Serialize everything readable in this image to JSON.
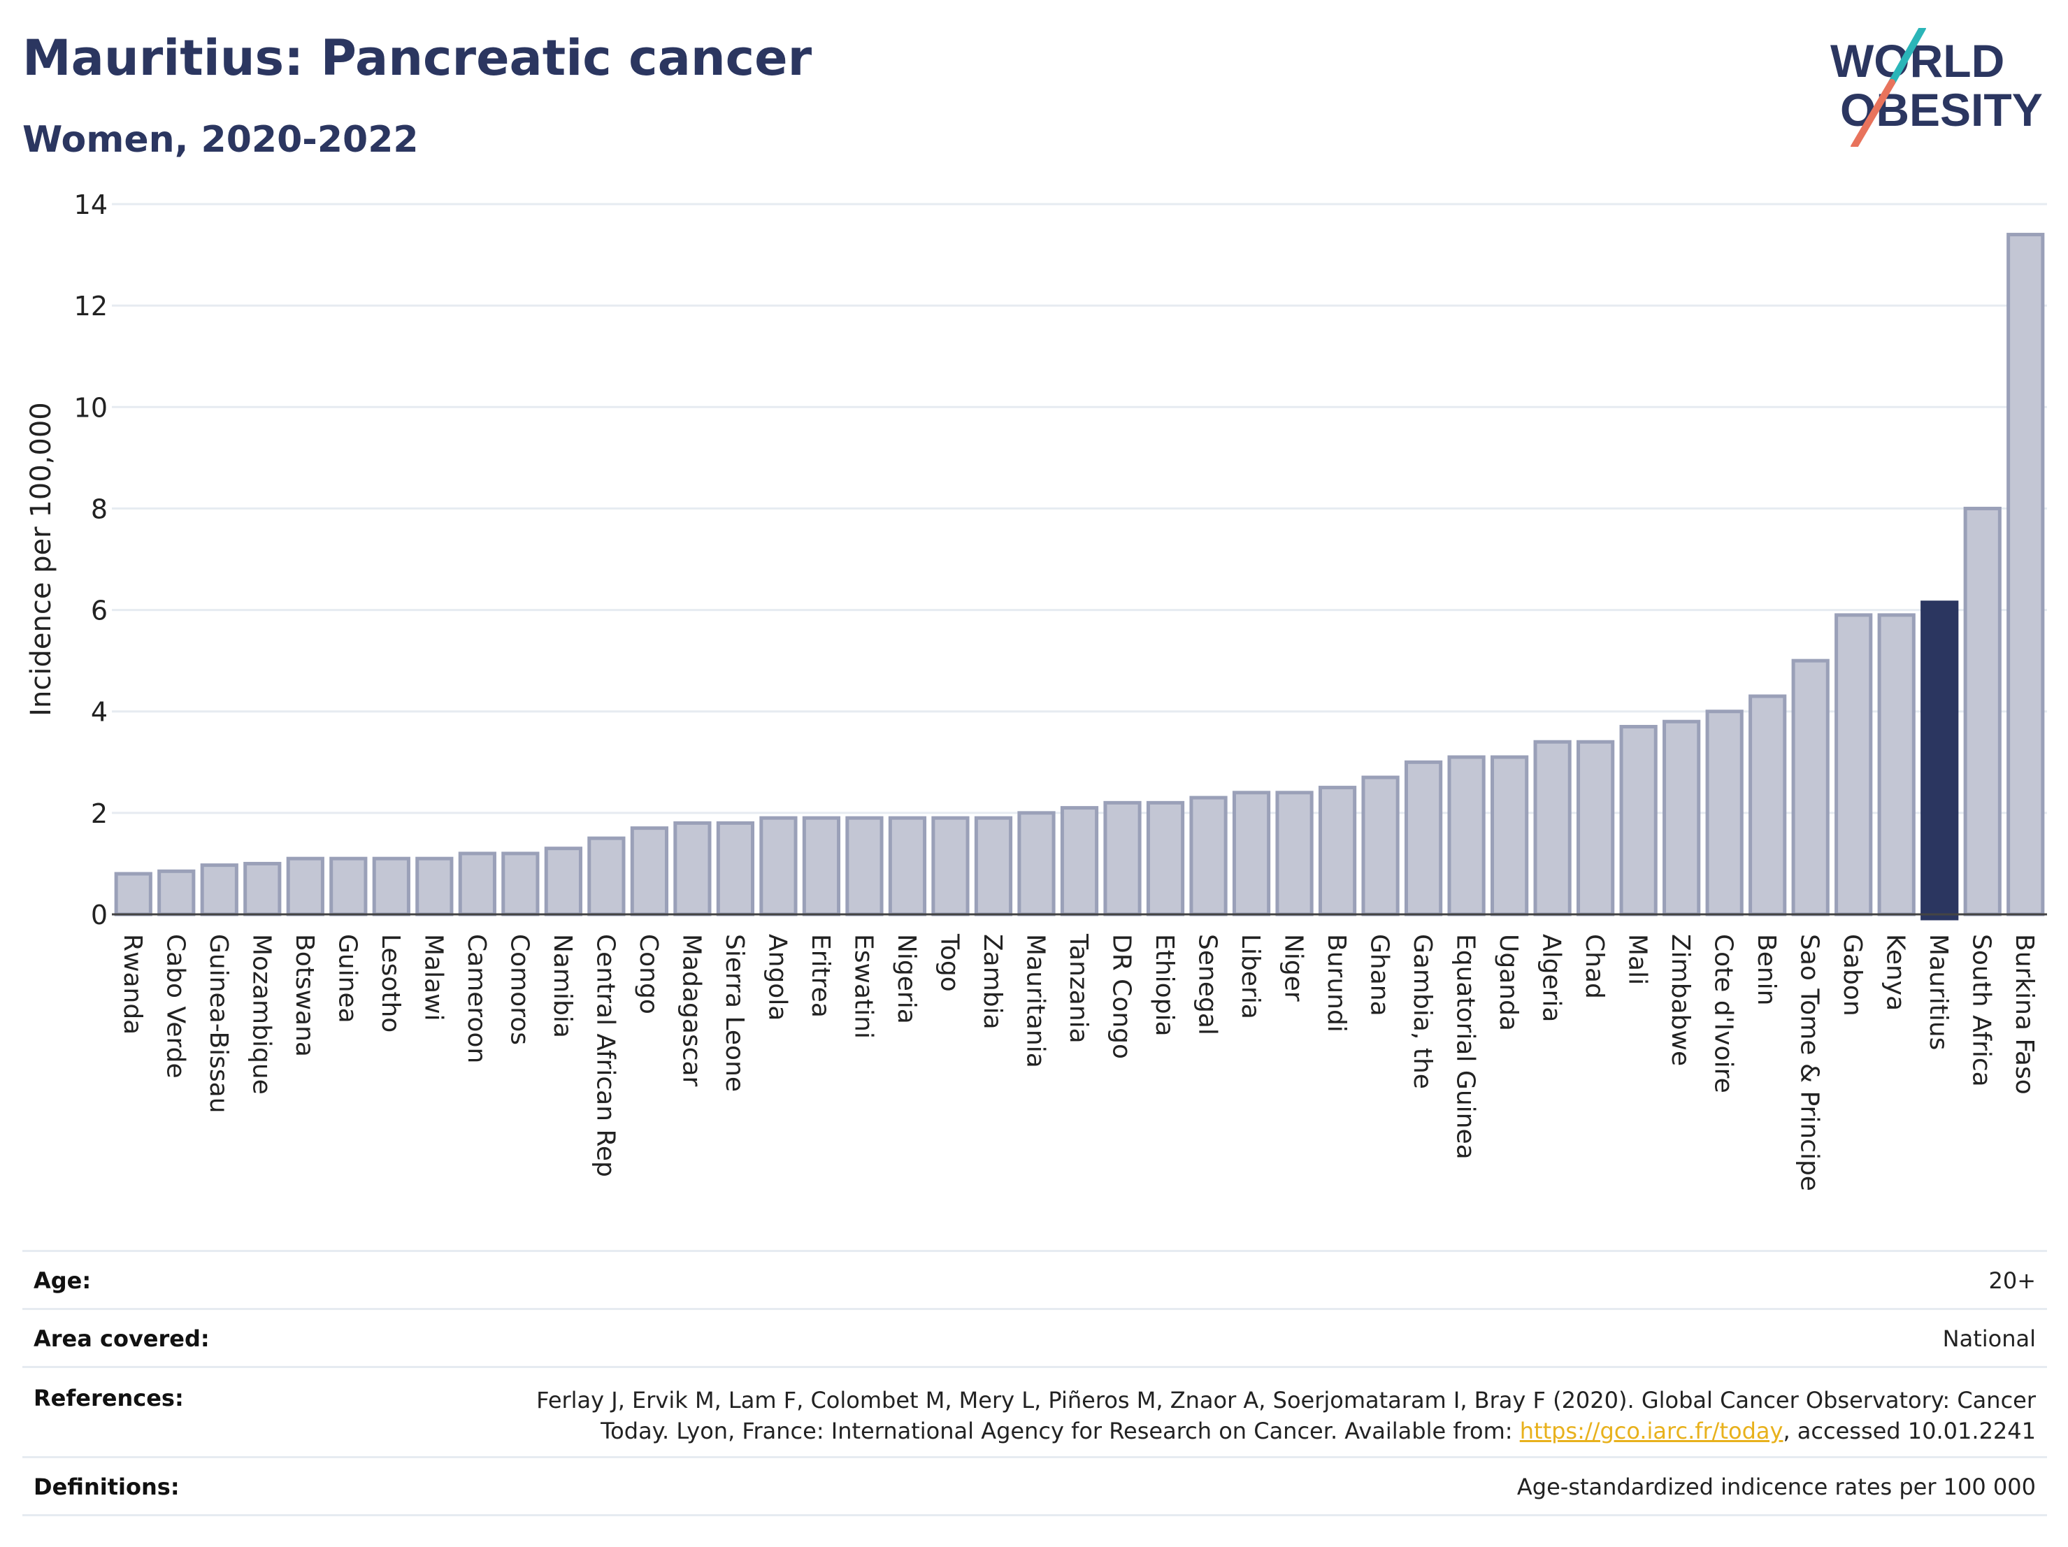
{
  "header": {
    "title": "Mauritius: Pancreatic cancer",
    "subtitle": "Women, 2020-2022"
  },
  "logo": {
    "line1": "WORLD",
    "line2": "OBESITY",
    "colors": {
      "text": "#2b3660",
      "slash_teal": "#2bb5b8",
      "slash_coral": "#e8735c"
    }
  },
  "chart_data": {
    "type": "bar",
    "title": "Mauritius: Pancreatic cancer",
    "subtitle": "Women, 2020-2022",
    "ylabel": "Incidence per 100,000",
    "xlabel": "",
    "ylim": [
      0,
      14
    ],
    "yticks": [
      0,
      2,
      4,
      6,
      8,
      10,
      12,
      14
    ],
    "grid": true,
    "highlight": "Mauritius",
    "colors": {
      "bar": "#c3c6d4",
      "bar_border": "#9aa0b8",
      "highlight": "#2b3660",
      "grid": "#e6ebf1"
    },
    "categories": [
      "Rwanda",
      "Cabo Verde",
      "Guinea-Bissau",
      "Mozambique",
      "Botswana",
      "Guinea",
      "Lesotho",
      "Malawi",
      "Cameroon",
      "Comoros",
      "Namibia",
      "Central African Rep",
      "Congo",
      "Madagascar",
      "Sierra Leone",
      "Angola",
      "Eritrea",
      "Eswatini",
      "Nigeria",
      "Togo",
      "Zambia",
      "Mauritania",
      "Tanzania",
      "DR Congo",
      "Ethiopia",
      "Senegal",
      "Liberia",
      "Niger",
      "Burundi",
      "Ghana",
      "Gambia, the",
      "Equatorial Guinea",
      "Uganda",
      "Algeria",
      "Chad",
      "Mali",
      "Zimbabwe",
      "Cote d'Ivoire",
      "Benin",
      "Sao Tome & Principe",
      "Gabon",
      "Kenya",
      "Mauritius",
      "South Africa",
      "Burkina Faso"
    ],
    "values": [
      0.8,
      0.85,
      0.97,
      1.0,
      1.1,
      1.1,
      1.1,
      1.1,
      1.2,
      1.2,
      1.3,
      1.5,
      1.7,
      1.8,
      1.8,
      1.9,
      1.9,
      1.9,
      1.9,
      1.9,
      1.9,
      2.0,
      2.1,
      2.2,
      2.2,
      2.3,
      2.4,
      2.4,
      2.5,
      2.7,
      3.0,
      3.1,
      3.1,
      3.4,
      3.4,
      3.7,
      3.8,
      4.0,
      4.3,
      5.0,
      5.9,
      5.9,
      6.15,
      8.0,
      13.4
    ]
  },
  "meta": {
    "age": {
      "label": "Age:",
      "value": "20+"
    },
    "area": {
      "label": "Area covered:",
      "value": "National"
    },
    "references": {
      "label": "References:",
      "line1": "Ferlay J, Ervik M, Lam F, Colombet M, Mery L, Piñeros M, Znaor A, Soerjomataram I, Bray F (2020). Global Cancer Observatory: Cancer",
      "line2_pre": "Today. Lyon, France: International Agency for Research on Cancer. Available from: ",
      "link": "https://gco.iarc.fr/today",
      "line2_post": ", accessed 10.01.2241"
    },
    "definitions": {
      "label": "Definitions:",
      "value": "Age-standardized indicence rates per 100 000"
    }
  }
}
